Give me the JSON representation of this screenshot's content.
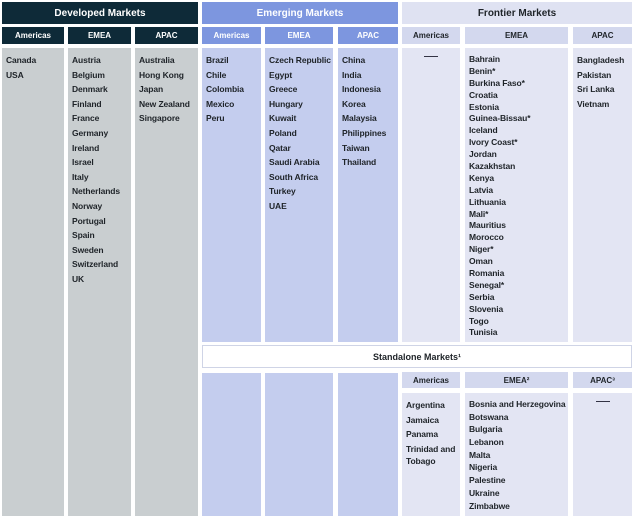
{
  "developed": {
    "title": "Developed Markets",
    "regions": [
      {
        "label": "Americas",
        "countries": [
          "Canada",
          "USA"
        ]
      },
      {
        "label": "EMEA",
        "countries": [
          "Austria",
          "Belgium",
          "Denmark",
          "Finland",
          "France",
          "Germany",
          "Ireland",
          "Israel",
          "Italy",
          "Netherlands",
          "Norway",
          "Portugal",
          "Spain",
          "Sweden",
          "Switzerland",
          "UK"
        ]
      },
      {
        "label": "APAC",
        "countries": [
          "Australia",
          "Hong Kong",
          "Japan",
          "New Zealand",
          "Singapore"
        ]
      }
    ]
  },
  "emerging": {
    "title": "Emerging Markets",
    "regions": [
      {
        "label": "Americas",
        "countries": [
          "Brazil",
          "Chile",
          "Colombia",
          "Mexico",
          "Peru"
        ]
      },
      {
        "label": "EMEA",
        "countries": [
          "Czech Republic",
          "Egypt",
          "Greece",
          "Hungary",
          "Kuwait",
          "Poland",
          "Qatar",
          "Saudi Arabia",
          "South Africa",
          "Turkey",
          "UAE"
        ]
      },
      {
        "label": "APAC",
        "countries": [
          "China",
          "India",
          "Indonesia",
          "Korea",
          "Malaysia",
          "Philippines",
          "Taiwan",
          "Thailand"
        ]
      }
    ]
  },
  "frontier": {
    "title": "Frontier Markets",
    "regions": [
      {
        "label": "Americas",
        "countries": []
      },
      {
        "label": "EMEA",
        "countries": [
          "Bahrain",
          "Benin*",
          "Burkina Faso*",
          "Croatia",
          "Estonia",
          "Guinea-Bissau*",
          "Iceland",
          "Ivory Coast*",
          "Jordan",
          "Kazakhstan",
          "Kenya",
          "Latvia",
          "Lithuania",
          "Mali*",
          "Mauritius",
          "Morocco",
          "Niger*",
          "Oman",
          "Romania",
          "Senegal*",
          "Serbia",
          "Slovenia",
          "Togo",
          "Tunisia"
        ]
      },
      {
        "label": "APAC",
        "countries": [
          "Bangladesh",
          "Pakistan",
          "Sri Lanka",
          "Vietnam"
        ]
      }
    ]
  },
  "standalone": {
    "title": "Standalone Markets¹",
    "regions": [
      {
        "label": "Americas",
        "countries": [
          "Argentina",
          "Jamaica",
          "Panama",
          "Trinidad and Tobago"
        ]
      },
      {
        "label": "EMEA²",
        "countries": [
          "Bosnia and Herzegovina",
          "Botswana",
          "Bulgaria",
          "Lebanon",
          "Malta",
          "Nigeria",
          "Palestine",
          "Ukraine",
          "Zimbabwe"
        ]
      },
      {
        "label": "APAC³",
        "countries": []
      }
    ]
  },
  "colors": {
    "developed": "#0e2a38",
    "emerging": "#7d96df",
    "frontier": "#dfe2f2"
  }
}
